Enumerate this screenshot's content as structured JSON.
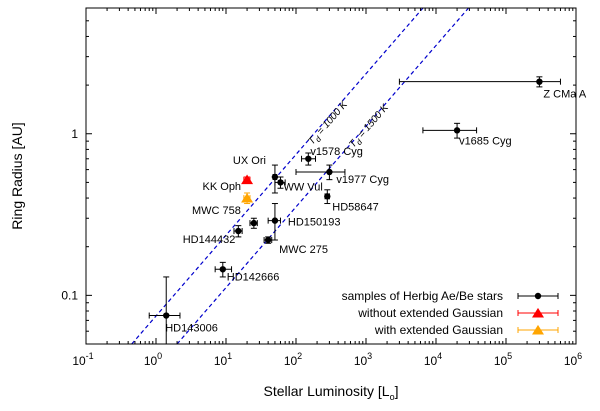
{
  "chart_data": {
    "type": "scatter",
    "xscale": "log",
    "yscale": "log",
    "xlim": [
      0.1,
      1000000
    ],
    "ylim": [
      0.05,
      6
    ],
    "xlabel": "Stellar Luminosity [L",
    "xlabel_sub": "o",
    "xlabel_close": "]",
    "ylabel": "Ring Radius [AU]",
    "x_ticks": [
      {
        "value": 0.1,
        "base": "10",
        "exp": "-1"
      },
      {
        "value": 1,
        "base": "10",
        "exp": "0"
      },
      {
        "value": 10,
        "base": "10",
        "exp": "1"
      },
      {
        "value": 100,
        "base": "10",
        "exp": "2"
      },
      {
        "value": 1000,
        "base": "10",
        "exp": "3"
      },
      {
        "value": 10000,
        "base": "10",
        "exp": "4"
      },
      {
        "value": 100000,
        "base": "10",
        "exp": "5"
      },
      {
        "value": 1000000,
        "base": "10",
        "exp": "6"
      }
    ],
    "y_ticks": [
      {
        "value": 0.1,
        "label": "0.1"
      },
      {
        "value": 1,
        "label": "1"
      }
    ],
    "grid": false,
    "legend_position": "bottom-right",
    "series": [
      {
        "name": "samples of Herbig Ae/Be stars",
        "color": "#000000",
        "marker": "circle",
        "points": [
          {
            "label": "Z CMa A",
            "x": 300000,
            "y": 2.1,
            "xerr": [
              3000,
              600000
            ],
            "yerr": [
              1.95,
              2.25
            ]
          },
          {
            "label": "v1685 Cyg",
            "x": 20000,
            "y": 1.05,
            "xerr": [
              6500,
              38000
            ],
            "yerr": [
              0.94,
              1.16
            ]
          },
          {
            "label": "v1578 Cyg",
            "x": 150,
            "y": 0.7,
            "xerr": [
              120,
              190
            ],
            "yerr": [
              0.64,
              0.76
            ]
          },
          {
            "label": "v1977 Cyg",
            "x": 300,
            "y": 0.58,
            "xerr": [
              100,
              500
            ],
            "yerr": [
              0.52,
              0.64
            ]
          },
          {
            "label": "UX Ori",
            "x": 50,
            "y": 0.54,
            "xerr": [
              47,
              53
            ],
            "yerr": [
              0.43,
              0.64
            ]
          },
          {
            "label": "WW Vul",
            "x": 60,
            "y": 0.5,
            "xerr": [
              50,
              70
            ],
            "yerr": [
              0.46,
              0.54
            ]
          },
          {
            "label": "HD58647",
            "x": 280,
            "y": 0.41,
            "xerr": [
              260,
              300
            ],
            "yerr": [
              0.37,
              0.45
            ]
          },
          {
            "label": "MWC 758",
            "x": 25,
            "y": 0.28,
            "xerr": [
              22,
              28
            ],
            "yerr": [
              0.26,
              0.3
            ]
          },
          {
            "label": "HD150193",
            "x": 50,
            "y": 0.29,
            "xerr": [
              40,
              60
            ],
            "yerr": [
              0.22,
              0.37
            ]
          },
          {
            "label": "HD144432",
            "x": 15,
            "y": 0.25,
            "xerr": [
              13,
              17
            ],
            "yerr": [
              0.23,
              0.27
            ]
          },
          {
            "label": "MWC 275",
            "x": 40,
            "y": 0.22,
            "xerr": [
              35,
              45
            ],
            "yerr": [
              0.21,
              0.23
            ]
          },
          {
            "label": "HD142666",
            "x": 9,
            "y": 0.145,
            "xerr": [
              7,
              12
            ],
            "yerr": [
              0.13,
              0.16
            ]
          },
          {
            "label": "HD143006",
            "x": 1.4,
            "y": 0.075,
            "xerr": [
              0.8,
              2.2
            ],
            "yerr": [
              0.05,
              0.13
            ]
          }
        ]
      },
      {
        "name": "without extended Gaussian",
        "color": "#ff0000",
        "marker": "triangle",
        "points": [
          {
            "label": "",
            "x": 20,
            "y": 0.52,
            "xerr": [
              18,
              22
            ],
            "yerr": [
              0.5,
              0.54
            ]
          }
        ]
      },
      {
        "name": "with extended Gaussian",
        "color": "#ffa500",
        "marker": "triangle",
        "points": [
          {
            "label": "KK Oph",
            "x": 20,
            "y": 0.4,
            "xerr": [
              18,
              22
            ],
            "yerr": [
              0.37,
              0.43
            ]
          }
        ]
      }
    ],
    "reference_lines": [
      {
        "label": "T",
        "label_sub": "d",
        "label_rest": " = 1000 K",
        "color": "#0000cc",
        "points": [
          [
            0.45,
            0.05
          ],
          [
            2000000,
            105
          ]
        ]
      },
      {
        "label": "T",
        "label_sub": "d",
        "label_rest": " = 1500 K",
        "color": "#0000cc",
        "points": [
          [
            2,
            0.05
          ],
          [
            9000000,
            105
          ]
        ]
      }
    ]
  }
}
